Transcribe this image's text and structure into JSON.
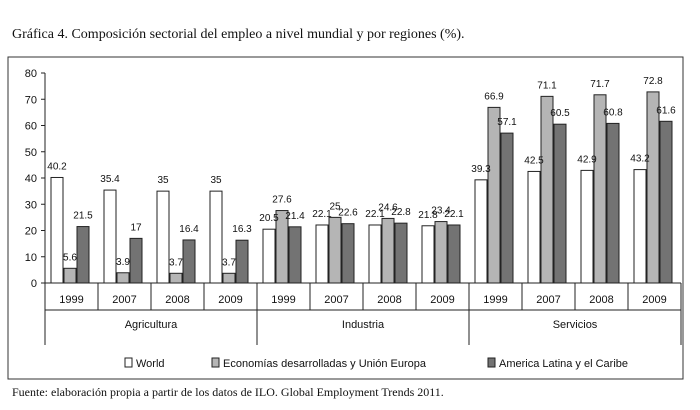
{
  "header": {
    "title": "Gráfica 4. Composición sectorial del empleo a nivel mundial y por regiones (%)."
  },
  "footer": {
    "source": "Fuente: elaboración propia a partir de los datos de ILO. Global Employment Trends 2011."
  },
  "chart_data": {
    "type": "bar",
    "title": "Gráfica 4. Composición sectorial del empleo a nivel mundial y por regiones (%).",
    "xlabel": "",
    "ylabel": "",
    "ylim": [
      0,
      80
    ],
    "yticks": [
      "0",
      "10",
      "20",
      "30",
      "40",
      "50",
      "60",
      "70",
      "80"
    ],
    "grid": false,
    "legend_position": "bottom",
    "groups": [
      {
        "name": "Agricultura",
        "categories": [
          "1999",
          "2007",
          "2008",
          "2009"
        ]
      },
      {
        "name": "Industria",
        "categories": [
          "1999",
          "2007",
          "2008",
          "2009"
        ]
      },
      {
        "name": "Servicios",
        "categories": [
          "1999",
          "2007",
          "2008",
          "2009"
        ]
      }
    ],
    "series": [
      {
        "name": "World",
        "color": "#ffffff",
        "values": [
          40.2,
          35.4,
          35,
          35,
          20.5,
          22.1,
          22.1,
          21.8,
          39.3,
          42.5,
          42.9,
          43.2
        ],
        "labels": [
          "40.2",
          "35.4",
          "35",
          "35",
          "20.5",
          "22.1",
          "22.1",
          "21.8",
          "39.3",
          "42.5",
          "42.9",
          "43.2"
        ]
      },
      {
        "name": "Economías desarrolladas y Unión Europa",
        "color": "#b5b5b5",
        "values": [
          5.6,
          3.9,
          3.7,
          3.7,
          27.6,
          25,
          24.6,
          23.4,
          66.9,
          71.1,
          71.7,
          72.8
        ],
        "labels": [
          "5.6",
          "3.9",
          "3.7",
          "3.7",
          "27.6",
          "25",
          "24.6",
          "23.4",
          "66.9",
          "71.1",
          "71.7",
          "72.8"
        ]
      },
      {
        "name": "America Latina y el Caribe",
        "color": "#737373",
        "values": [
          21.5,
          17,
          16.4,
          16.3,
          21.4,
          22.6,
          22.8,
          22.1,
          57.1,
          60.5,
          60.8,
          61.6
        ],
        "labels": [
          "21.5",
          "17",
          "16.4",
          "16.3",
          "21.4",
          "22.6",
          "22.8",
          "22.1",
          "57.1",
          "60.5",
          "60.8",
          "61.6"
        ]
      }
    ]
  }
}
